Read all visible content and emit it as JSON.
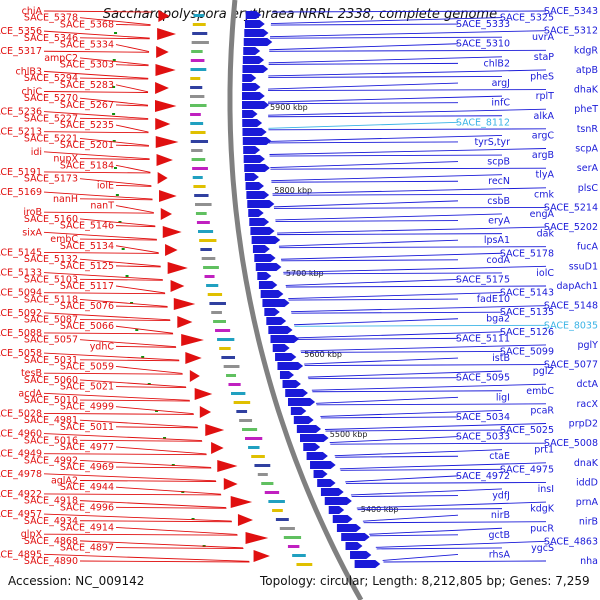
{
  "title": "Saccharopolyspora erythraea NRRL 2338, complete genome",
  "footer": {
    "accession": "Accession: NC_009142",
    "summary": "Topology: circular; Length: 8,212,805 bp; Genes: 7,259"
  },
  "colors": {
    "left_strand": "#e01010",
    "right_strand": "#1a1ad8",
    "highlight": "#3cb4e6",
    "backbone": "#808080"
  },
  "kbp_marks": [
    "5900 kbp",
    "5800 kbp",
    "5700 kbp",
    "5600 kbp",
    "5500 kbp",
    "5400 kbp"
  ],
  "left_labels": [
    "chiA",
    "SACE_5378",
    "SACE_5368",
    "SACE_5356",
    "SACE_5346",
    "SACE_5334",
    "SACE_5317",
    "ampC2",
    "SACE_5303",
    "chlB3",
    "SACE_5294",
    "SACE_5283",
    "chiC",
    "SACE_5270",
    "SACE_5267",
    "SACE_5236",
    "SACE_5227",
    "SACE_5235",
    "SACE_5213",
    "SACE_5221",
    "SACE_5201",
    "idi",
    "nupX",
    "SACE_5184",
    "SACE_5191",
    "SACE_5173",
    "iolE",
    "SACE_5169",
    "nanH",
    "nanT",
    "iroB",
    "SACE_5160",
    "SACE_5146",
    "sixA",
    "embC",
    "SACE_5134",
    "SACE_5145",
    "SACE_5132",
    "SACE_5125",
    "SACE_5133",
    "SACE_5103",
    "SACE_5117",
    "SACE_5094",
    "SACE_5118",
    "SACE_5076",
    "SACE_5092",
    "SACE_5087",
    "SACE_5066",
    "SACE_5088",
    "SACE_5057",
    "ydhC",
    "SACE_5058",
    "SACE_5031",
    "SACE_5059",
    "tesB",
    "SACE_5060",
    "SACE_5021",
    "acdA",
    "SACE_5010",
    "SACE_4999",
    "SACE_5028",
    "SACE_4981",
    "SACE_5011",
    "SACE_4960",
    "SACE_5016",
    "SACE_4977",
    "SACE_4949",
    "SACE_4992",
    "SACE_4969",
    "SACE_4978",
    "aglA2",
    "SACE_4944",
    "SACE_4922",
    "SACE_4918",
    "SACE_4996",
    "SACE_4957",
    "SACE_4934",
    "SACE_4914",
    "glpX",
    "SACE_4868",
    "SACE_4897",
    "SACE_4895",
    "SACE_4890"
  ],
  "right_labels": [
    "SACE_5343",
    "SACE_5325",
    "SACE_5333",
    "SACE_5312",
    "uvrA",
    "SACE_5310",
    "kdgR",
    "staP",
    "chlB2",
    "atpB",
    "pheS",
    "argJ",
    "dhaK",
    "rplT",
    "infC",
    "pheT",
    "alkA",
    "SACE_8112",
    "tsnR",
    "argC",
    "tyrS,tyr",
    "scpA",
    "argB",
    "scpB",
    "serA",
    "tlyA",
    "recN",
    "plsC",
    "cmk",
    "csbB",
    "SACE_5214",
    "engA",
    "eryA",
    "SACE_5202",
    "dak",
    "lpsA1",
    "fucA",
    "SACE_5178",
    "codA",
    "ssuD1",
    "iolC",
    "SACE_5175",
    "dapAch1",
    "SACE_5143",
    "fadE10",
    "SACE_5148",
    "SACE_5135",
    "bga2",
    "SACE_8035",
    "SACE_5126",
    "SACE_5111",
    "pglY",
    "SACE_5099",
    "istB",
    "SACE_5077",
    "pglZ",
    "SACE_5095",
    "dctA",
    "embC",
    "ligI",
    "racX",
    "pcaR",
    "SACE_5034",
    "prpD2",
    "SACE_5025",
    "SACE_5033",
    "SACE_5008",
    "prt1",
    "ctaE",
    "dnaK",
    "SACE_4975",
    "SACE_4972",
    "iddD",
    "insI",
    "ydfJ",
    "prnA",
    "kdgK",
    "nirB",
    "nirB",
    "pucR",
    "gctB",
    "SACE_4863",
    "ygcS",
    "rhsA",
    "nha"
  ]
}
